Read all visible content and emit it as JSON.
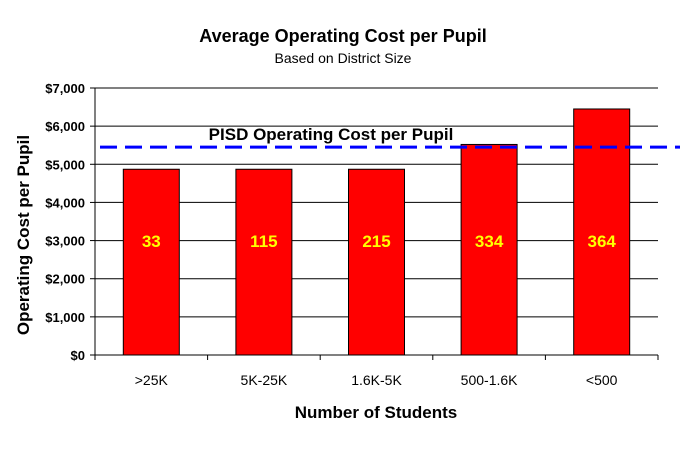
{
  "chart_data": {
    "type": "bar",
    "title": "Average Operating Cost per Pupil",
    "subtitle": "Based on District Size",
    "xlabel": "Number of Students",
    "ylabel": "Operating Cost per Pupil",
    "categories": [
      ">25K",
      "5K-25K",
      "1.6K-5K",
      "500-1.6K",
      "<500"
    ],
    "values": [
      4870,
      4870,
      4870,
      5520,
      6450
    ],
    "bar_labels": [
      "33",
      "115",
      "215",
      "334",
      "364"
    ],
    "ylim": [
      0,
      7000
    ],
    "yticks": [
      0,
      1000,
      2000,
      3000,
      4000,
      5000,
      6000,
      7000
    ],
    "ytick_labels": [
      "$0",
      "$1,000",
      "$2,000",
      "$3,000",
      "$4,000",
      "$5,000",
      "$6,000",
      "$7,000"
    ],
    "grid": true,
    "reference_line": {
      "label": "PISD Operating Cost per Pupil",
      "value": 5450
    },
    "colors": {
      "bar": "#ff0000",
      "bar_label": "#ffff00",
      "reference_line": "#0000ff",
      "grid": "#000000"
    }
  }
}
